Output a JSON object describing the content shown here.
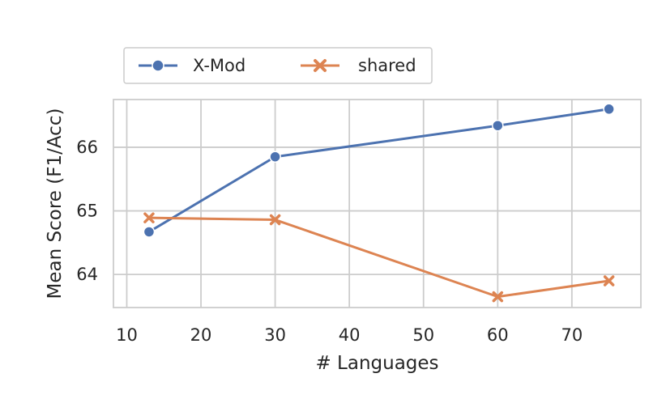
{
  "chart_data": {
    "type": "line",
    "xlabel": "# Languages",
    "ylabel": "Mean Score (F1/Acc)",
    "xlim": [
      8.2,
      79.3
    ],
    "ylim": [
      63.48,
      66.75
    ],
    "x_ticks": [
      10,
      20,
      30,
      40,
      50,
      60,
      70
    ],
    "y_ticks": [
      64,
      65,
      66
    ],
    "grid": true,
    "legend_position": "top-left, above plot",
    "x": [
      13,
      30,
      60,
      75
    ],
    "series": [
      {
        "name": "X-Mod",
        "values": [
          64.67,
          65.85,
          66.34,
          66.6
        ],
        "color": "#4c72b0",
        "marker": "circle"
      },
      {
        "name": "shared",
        "values": [
          64.89,
          64.86,
          63.65,
          63.9
        ],
        "color": "#dd8452",
        "marker": "x"
      }
    ]
  }
}
